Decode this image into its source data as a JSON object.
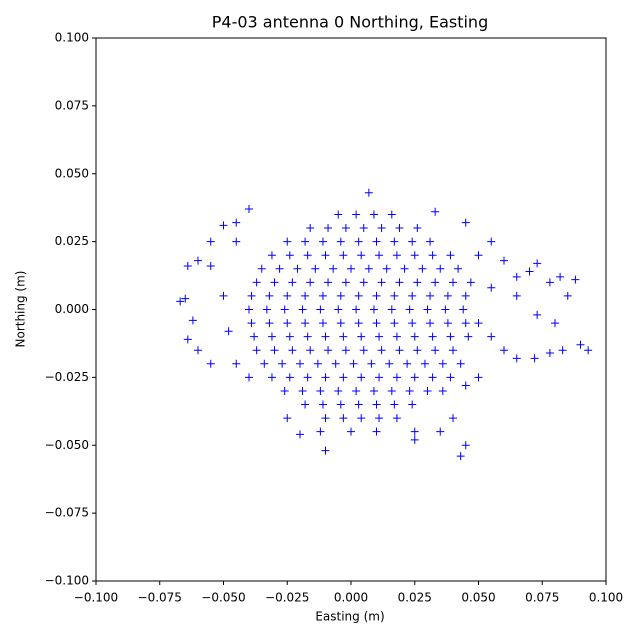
{
  "chart_data": {
    "type": "scatter",
    "title": "P4-03 antenna 0 Northing, Easting",
    "x_label": "Easting (m)",
    "y_label": "Northing (m)",
    "color": "#0000ff",
    "marker": "+",
    "xlim": [
      -0.1,
      0.1
    ],
    "ylim": [
      -0.1,
      0.1
    ],
    "xticks": [
      {
        "value": -0.1,
        "label": "−0.100"
      },
      {
        "value": -0.075,
        "label": "−0.075"
      },
      {
        "value": -0.05,
        "label": "−0.050"
      },
      {
        "value": -0.025,
        "label": "−0.025"
      },
      {
        "value": 0,
        "label": "0.000"
      },
      {
        "value": 0.025,
        "label": "0.025"
      },
      {
        "value": 0.05,
        "label": "0.050"
      },
      {
        "value": 0.075,
        "label": "0.075"
      },
      {
        "value": 0.1,
        "label": "0.100"
      }
    ],
    "yticks": [
      {
        "value": -0.1,
        "label": "−0.100"
      },
      {
        "value": -0.075,
        "label": "−0.075"
      },
      {
        "value": -0.05,
        "label": "−0.050"
      },
      {
        "value": -0.025,
        "label": "−0.025"
      },
      {
        "value": 0,
        "label": "0.000"
      },
      {
        "value": 0.025,
        "label": "0.025"
      },
      {
        "value": 0.05,
        "label": "0.050"
      },
      {
        "value": 0.075,
        "label": "0.075"
      },
      {
        "value": 0.1,
        "label": "0.100"
      }
    ],
    "x": [
      -0.005,
      0.002,
      0.009,
      0.016,
      -0.016,
      -0.009,
      -0.002,
      0.005,
      0.012,
      0.019,
      0.026,
      -0.025,
      -0.018,
      -0.011,
      -0.004,
      0.003,
      0.01,
      0.017,
      0.024,
      0.031,
      -0.031,
      -0.024,
      -0.017,
      -0.01,
      -0.003,
      0.004,
      0.011,
      0.018,
      0.025,
      0.032,
      0.039,
      -0.035,
      -0.028,
      -0.021,
      -0.014,
      -0.007,
      0,
      0.007,
      0.014,
      0.021,
      0.028,
      0.035,
      0.042,
      -0.037,
      -0.03,
      -0.023,
      -0.016,
      -0.009,
      -0.002,
      0.005,
      0.012,
      0.019,
      0.026,
      0.033,
      0.04,
      0.047,
      -0.039,
      -0.032,
      -0.025,
      -0.018,
      -0.011,
      -0.004,
      0.003,
      0.01,
      0.017,
      0.024,
      0.031,
      0.038,
      0.045,
      -0.04,
      -0.033,
      -0.026,
      -0.019,
      -0.012,
      -0.005,
      0.002,
      0.009,
      0.016,
      0.023,
      0.03,
      0.037,
      0.044,
      -0.039,
      -0.032,
      -0.025,
      -0.018,
      -0.011,
      -0.004,
      0.003,
      0.01,
      0.017,
      0.024,
      0.031,
      0.038,
      0.045,
      -0.038,
      -0.031,
      -0.024,
      -0.017,
      -0.01,
      -0.003,
      0.004,
      0.011,
      0.018,
      0.025,
      0.032,
      0.039,
      0.046,
      -0.037,
      -0.03,
      -0.023,
      -0.016,
      -0.009,
      -0.002,
      0.005,
      0.012,
      0.019,
      0.026,
      0.033,
      0.04,
      -0.034,
      -0.027,
      -0.02,
      -0.013,
      -0.006,
      0.001,
      0.008,
      0.015,
      0.022,
      0.029,
      0.036,
      0.043,
      -0.031,
      -0.024,
      -0.017,
      -0.01,
      -0.003,
      0.004,
      0.011,
      0.018,
      0.025,
      0.032,
      0.039,
      -0.026,
      -0.019,
      -0.012,
      -0.005,
      0.002,
      0.009,
      0.016,
      0.023,
      0.03,
      0.036,
      -0.018,
      -0.011,
      -0.004,
      0.003,
      0.01,
      0.017,
      0.024,
      -0.01,
      -0.003,
      0.004,
      0.011,
      0.018,
      -0.012,
      0.0,
      0.01,
      0.025,
      0.007,
      0.033,
      0.045,
      -0.04,
      -0.045,
      -0.05,
      -0.055,
      -0.06,
      -0.064,
      -0.055,
      -0.067,
      -0.065,
      -0.062,
      -0.064,
      -0.06,
      -0.055,
      -0.045,
      -0.05,
      -0.048,
      0.055,
      0.06,
      0.065,
      0.07,
      0.073,
      0.078,
      0.082,
      0.088,
      0.085,
      0.08,
      0.073,
      0.065,
      0.055,
      0.055,
      0.06,
      0.065,
      0.072,
      0.078,
      0.083,
      0.09,
      0.093,
      0.05,
      0.045,
      0.04,
      0.045,
      0.043,
      0.035,
      0.025,
      -0.01,
      -0.02,
      -0.025,
      -0.04,
      -0.045,
      0.05,
      0.05
    ],
    "values": [
      0.035,
      0.035,
      0.035,
      0.035,
      0.03,
      0.03,
      0.03,
      0.03,
      0.03,
      0.03,
      0.03,
      0.025,
      0.025,
      0.025,
      0.025,
      0.025,
      0.025,
      0.025,
      0.025,
      0.025,
      0.02,
      0.02,
      0.02,
      0.02,
      0.02,
      0.02,
      0.02,
      0.02,
      0.02,
      0.02,
      0.02,
      0.015,
      0.015,
      0.015,
      0.015,
      0.015,
      0.015,
      0.015,
      0.015,
      0.015,
      0.015,
      0.015,
      0.015,
      0.01,
      0.01,
      0.01,
      0.01,
      0.01,
      0.01,
      0.01,
      0.01,
      0.01,
      0.01,
      0.01,
      0.01,
      0.01,
      0.005,
      0.005,
      0.005,
      0.005,
      0.005,
      0.005,
      0.005,
      0.005,
      0.005,
      0.005,
      0.005,
      0.005,
      0.005,
      0,
      0,
      0,
      0,
      0,
      0,
      0,
      0,
      0,
      0,
      0,
      0,
      0,
      -0.005,
      -0.005,
      -0.005,
      -0.005,
      -0.005,
      -0.005,
      -0.005,
      -0.005,
      -0.005,
      -0.005,
      -0.005,
      -0.005,
      -0.005,
      -0.01,
      -0.01,
      -0.01,
      -0.01,
      -0.01,
      -0.01,
      -0.01,
      -0.01,
      -0.01,
      -0.01,
      -0.01,
      -0.01,
      -0.01,
      -0.015,
      -0.015,
      -0.015,
      -0.015,
      -0.015,
      -0.015,
      -0.015,
      -0.015,
      -0.015,
      -0.015,
      -0.015,
      -0.015,
      -0.02,
      -0.02,
      -0.02,
      -0.02,
      -0.02,
      -0.02,
      -0.02,
      -0.02,
      -0.02,
      -0.02,
      -0.02,
      -0.02,
      -0.025,
      -0.025,
      -0.025,
      -0.025,
      -0.025,
      -0.025,
      -0.025,
      -0.025,
      -0.025,
      -0.025,
      -0.025,
      -0.03,
      -0.03,
      -0.03,
      -0.03,
      -0.03,
      -0.03,
      -0.03,
      -0.03,
      -0.03,
      -0.03,
      -0.035,
      -0.035,
      -0.035,
      -0.035,
      -0.035,
      -0.035,
      -0.035,
      -0.04,
      -0.04,
      -0.04,
      -0.04,
      -0.04,
      -0.045,
      -0.045,
      -0.045,
      -0.045,
      0.043,
      0.036,
      0.032,
      0.037,
      0.032,
      0.031,
      0.025,
      0.018,
      0.016,
      0.016,
      0.003,
      0.004,
      -0.004,
      -0.011,
      -0.015,
      -0.02,
      -0.02,
      0.005,
      -0.008,
      0.025,
      0.018,
      0.012,
      0.014,
      0.017,
      0.01,
      0.012,
      0.011,
      0.005,
      -0.005,
      -0.002,
      0.005,
      0.008,
      -0.01,
      -0.015,
      -0.018,
      -0.018,
      -0.016,
      -0.015,
      -0.013,
      -0.015,
      -0.025,
      -0.028,
      -0.04,
      -0.05,
      -0.054,
      -0.045,
      -0.048,
      -0.052,
      -0.046,
      -0.04,
      -0.025,
      0.025,
      0.02,
      -0.005
    ]
  }
}
